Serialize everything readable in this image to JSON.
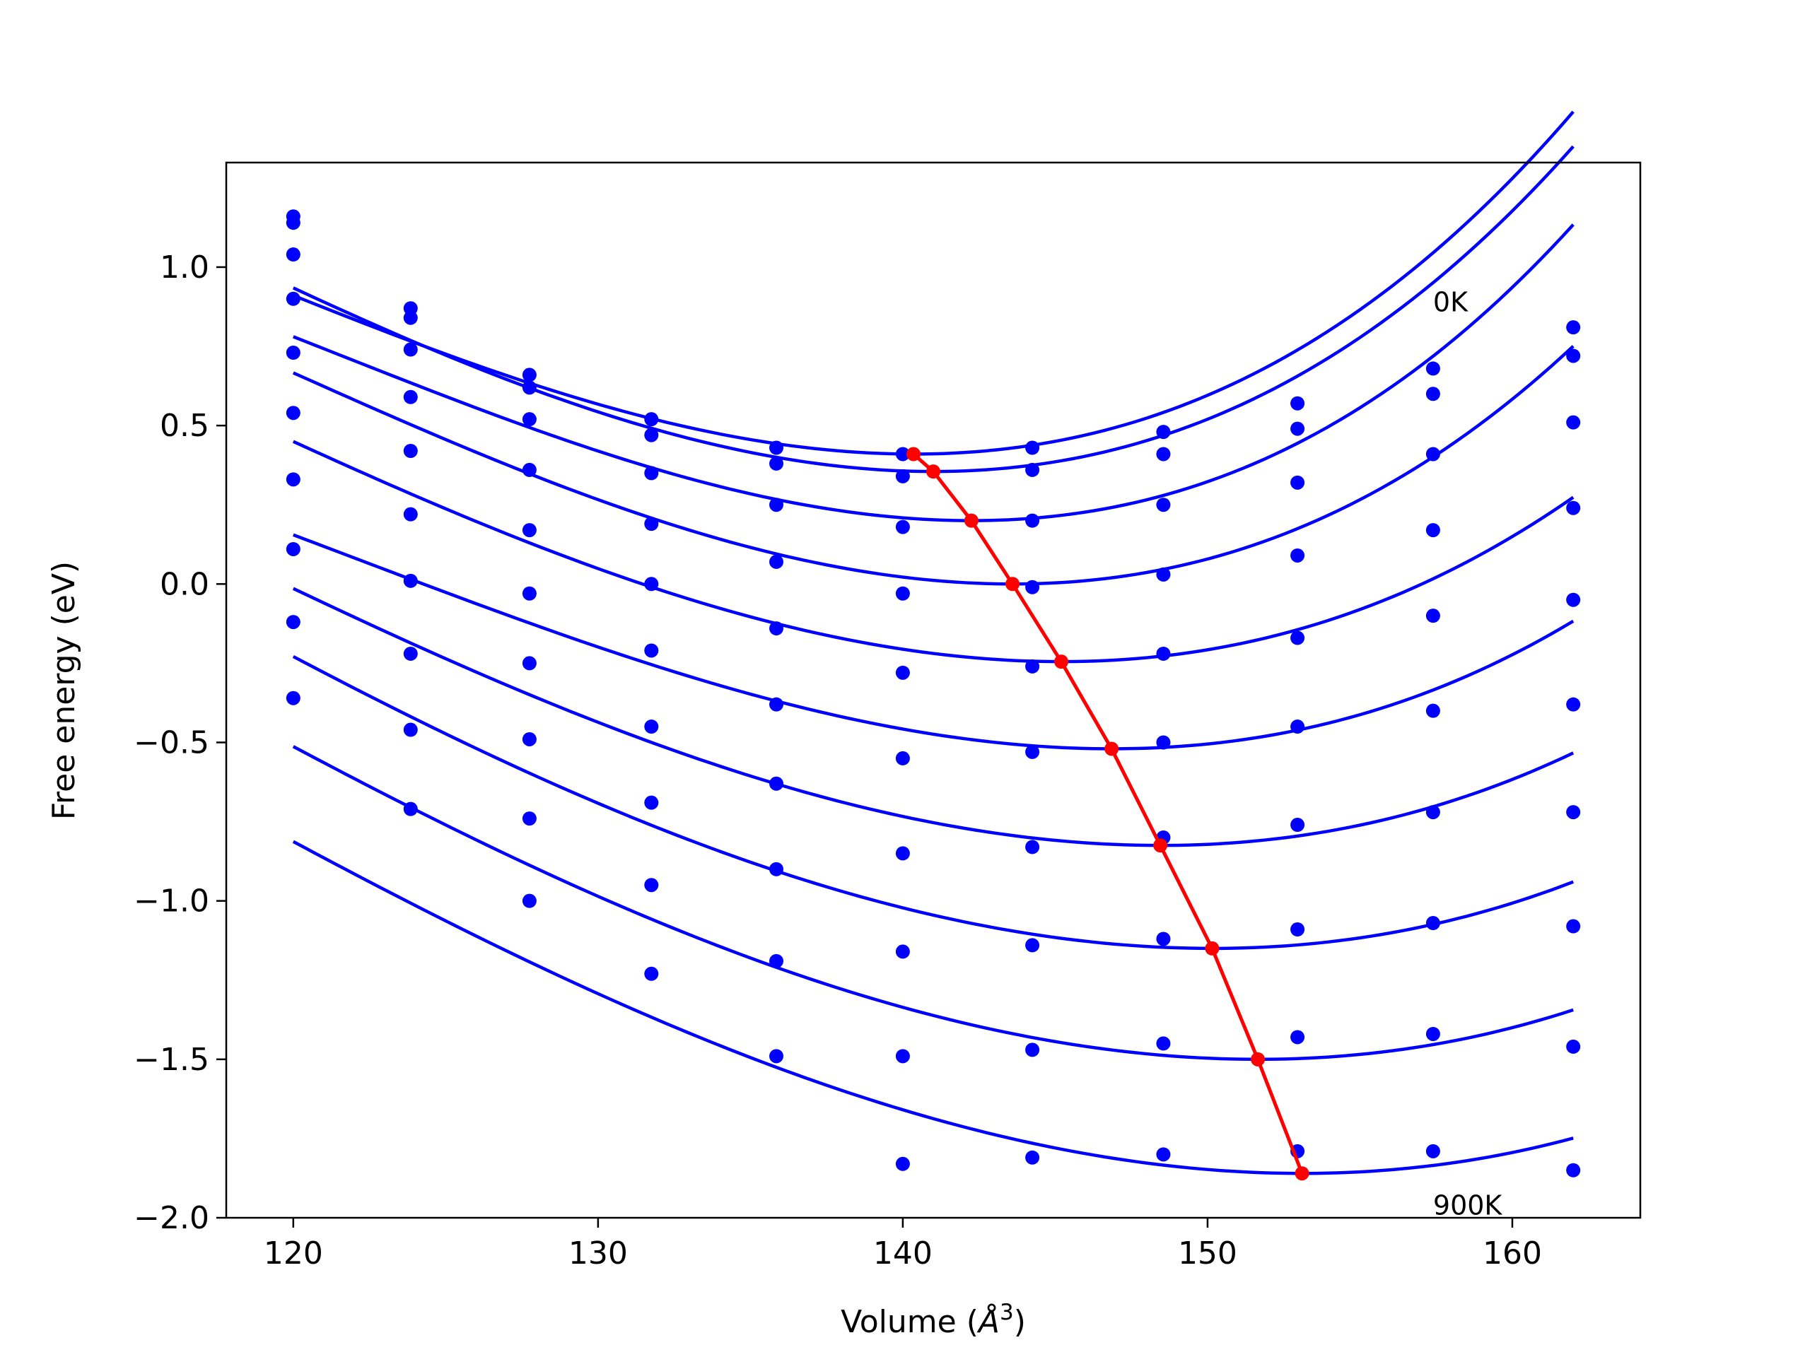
{
  "chart_data": {
    "type": "scatter",
    "title": "",
    "xlabel": "Volume (",
    "xlabel_symbol": "Å",
    "xlabel_exponent": "3",
    "xlabel_close": ")",
    "ylabel": "Free energy (eV)",
    "xlim": [
      117.8,
      164.2
    ],
    "ylim": [
      -2.0,
      1.33
    ],
    "xticks": [
      120,
      130,
      140,
      150,
      160
    ],
    "xtick_labels": [
      "120",
      "130",
      "140",
      "150",
      "160"
    ],
    "yticks": [
      1.0,
      0.5,
      0.0,
      -0.5,
      -1.0,
      -1.5,
      -2.0
    ],
    "ytick_labels": [
      "1.0",
      "0.5",
      "0.0",
      "−0.5",
      "−1.0",
      "−1.5",
      "−2.0"
    ],
    "grid": false,
    "annotations": [
      {
        "text": "0K",
        "x": 157.4,
        "y": 0.86
      },
      {
        "text": "900K",
        "x": 157.4,
        "y": -1.99
      }
    ],
    "x": [
      120.0,
      123.85,
      127.75,
      131.75,
      135.85,
      140.0,
      144.25,
      148.55,
      152.95,
      157.4,
      162.0
    ],
    "series": [
      {
        "color": "#0000ff",
        "points": [
          1.16,
          0.87,
          0.66,
          0.52,
          0.43,
          0.41,
          0.43,
          0.48,
          0.57,
          0.68,
          0.81
        ],
        "fit": {
          "min_x": 140.35,
          "min_y": 0.41,
          "a": 0.00174,
          "b": 2.61e-05
        }
      },
      {
        "color": "#0000ff",
        "points": [
          1.14,
          0.84,
          0.62,
          0.47,
          0.38,
          0.34,
          0.36,
          0.41,
          0.49,
          0.6,
          0.72
        ],
        "fit": {
          "min_x": 141.0,
          "min_y": 0.355,
          "a": 0.00182,
          "b": 2.41e-05
        }
      },
      {
        "color": "#0000ff",
        "points": [
          1.04,
          0.74,
          0.52,
          0.35,
          0.25,
          0.18,
          0.2,
          0.25,
          0.32,
          0.41,
          0.51
        ],
        "fit": {
          "min_x": 142.25,
          "min_y": 0.2,
          "a": 0.00182,
          "b": 2.91e-05
        }
      },
      {
        "color": "#0000ff",
        "points": [
          0.9,
          0.59,
          0.36,
          0.19,
          0.07,
          -0.03,
          -0.01,
          0.03,
          0.09,
          0.17,
          0.24
        ],
        "fit": {
          "min_x": 143.6,
          "min_y": 0.0,
          "a": 0.00177,
          "b": 2.43e-05
        }
      },
      {
        "color": "#0000ff",
        "points": [
          0.73,
          0.42,
          0.17,
          0.0,
          -0.14,
          -0.28,
          -0.26,
          -0.22,
          -0.17,
          -0.1,
          -0.05
        ],
        "fit": {
          "min_x": 145.2,
          "min_y": -0.245,
          "a": 0.00154,
          "b": 1.77e-05
        }
      },
      {
        "color": "#0000ff",
        "points": [
          0.54,
          0.22,
          -0.03,
          -0.21,
          -0.38,
          -0.55,
          -0.53,
          -0.5,
          -0.45,
          -0.4,
          -0.38
        ],
        "fit": {
          "min_x": 146.85,
          "min_y": -0.52,
          "a": 0.00146,
          "b": 1.95e-05
        }
      },
      {
        "color": "#0000ff",
        "points": [
          0.33,
          0.01,
          -0.25,
          -0.45,
          -0.63,
          -0.85,
          -0.83,
          -0.8,
          -0.76,
          -0.72,
          -0.72
        ],
        "fit": {
          "min_x": 148.45,
          "min_y": -0.825,
          "a": 0.0014,
          "b": 1.4e-05
        }
      },
      {
        "color": "#0000ff",
        "points": [
          0.11,
          -0.22,
          -0.49,
          -0.69,
          -0.9,
          -1.16,
          -1.14,
          -1.12,
          -1.09,
          -1.07,
          -1.08
        ],
        "fit": {
          "min_x": 150.15,
          "min_y": -1.15,
          "a": 0.00136,
          "b": 1.15e-05
        }
      },
      {
        "color": "#0000ff",
        "points": [
          -0.12,
          -0.46,
          -0.74,
          -0.95,
          -1.19,
          -1.49,
          -1.47,
          -1.45,
          -1.43,
          -1.42,
          -1.46
        ],
        "fit": {
          "min_x": 151.65,
          "min_y": -1.5,
          "a": 0.00134,
          "b": 1.12e-05
        }
      },
      {
        "color": "#0000ff",
        "points": [
          -0.36,
          -0.71,
          -1.0,
          -1.23,
          -1.49,
          -1.83,
          -1.81,
          -1.8,
          -1.79,
          -1.79,
          -1.85
        ],
        "fit": {
          "min_x": 153.1,
          "min_y": -1.86,
          "a": 0.00131,
          "b": 1.07e-05
        }
      }
    ],
    "minima_line": {
      "color": "#ff0000",
      "x": [
        140.35,
        141.0,
        142.25,
        143.6,
        145.2,
        146.85,
        148.45,
        150.15,
        151.65,
        153.1
      ],
      "y": [
        0.41,
        0.355,
        0.2,
        0.0,
        -0.245,
        -0.52,
        -0.825,
        -1.15,
        -1.5,
        -1.86
      ]
    }
  }
}
